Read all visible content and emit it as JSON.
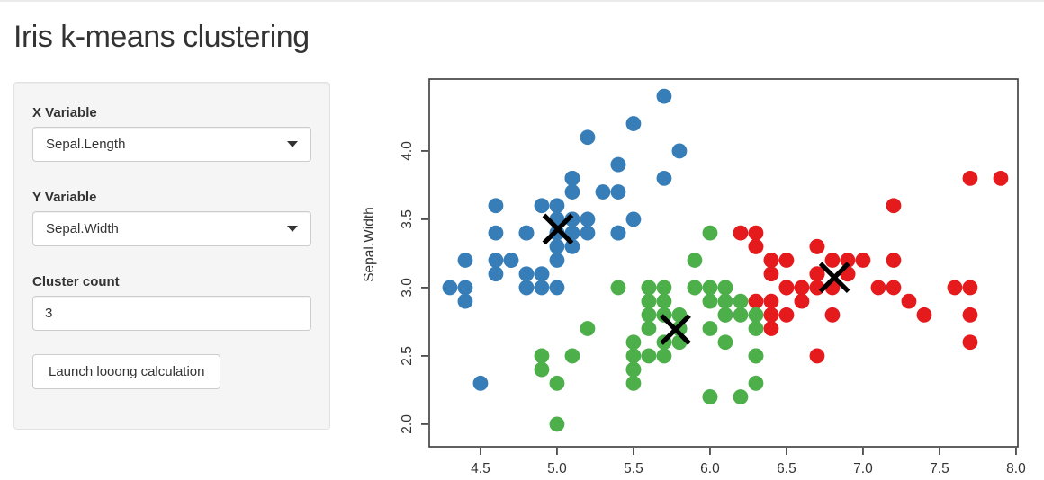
{
  "app": {
    "title": "Iris k-means clustering"
  },
  "sidebar": {
    "x_variable": {
      "label": "X Variable",
      "value": "Sepal.Length"
    },
    "y_variable": {
      "label": "Y Variable",
      "value": "Sepal.Width"
    },
    "cluster_count": {
      "label": "Cluster count",
      "value": "3"
    },
    "launch_button": "Launch looong calculation"
  },
  "chart_data": {
    "type": "scatter",
    "title": "",
    "xlabel": "",
    "ylabel": "Sepal.Width",
    "x_ticks": [
      4.5,
      5.0,
      5.5,
      6.0,
      6.5,
      7.0,
      7.5,
      8.0
    ],
    "y_ticks": [
      2.0,
      2.5,
      3.0,
      3.5,
      4.0
    ],
    "x_range": [
      4.165,
      8.012
    ],
    "y_range": [
      1.835,
      4.526
    ],
    "grid": false,
    "legend": "none",
    "cluster_colors": [
      "#377EB8",
      "#4DAF4A",
      "#E41A1C"
    ],
    "center_marker": {
      "shape": "x",
      "color": "#000000"
    },
    "centers": [
      [
        5.006,
        3.428
      ],
      [
        5.774,
        2.693
      ],
      [
        6.813,
        3.074
      ]
    ],
    "points": [
      [
        5.1,
        3.5
      ],
      [
        4.9,
        3.0
      ],
      [
        4.7,
        3.2
      ],
      [
        4.6,
        3.1
      ],
      [
        5.0,
        3.6
      ],
      [
        5.4,
        3.9
      ],
      [
        4.6,
        3.4
      ],
      [
        5.0,
        3.4
      ],
      [
        4.4,
        2.9
      ],
      [
        4.9,
        3.1
      ],
      [
        5.4,
        3.7
      ],
      [
        4.8,
        3.4
      ],
      [
        4.8,
        3.0
      ],
      [
        4.3,
        3.0
      ],
      [
        5.8,
        4.0
      ],
      [
        5.7,
        4.4
      ],
      [
        5.4,
        3.9
      ],
      [
        5.1,
        3.5
      ],
      [
        5.7,
        3.8
      ],
      [
        5.1,
        3.8
      ],
      [
        5.4,
        3.4
      ],
      [
        5.1,
        3.7
      ],
      [
        4.6,
        3.6
      ],
      [
        5.1,
        3.3
      ],
      [
        4.8,
        3.4
      ],
      [
        5.0,
        3.0
      ],
      [
        5.0,
        3.4
      ],
      [
        5.2,
        3.5
      ],
      [
        5.2,
        3.4
      ],
      [
        4.7,
        3.2
      ],
      [
        4.8,
        3.1
      ],
      [
        5.4,
        3.4
      ],
      [
        5.2,
        4.1
      ],
      [
        5.5,
        4.2
      ],
      [
        4.9,
        3.1
      ],
      [
        5.0,
        3.2
      ],
      [
        5.5,
        3.5
      ],
      [
        4.9,
        3.6
      ],
      [
        4.4,
        3.0
      ],
      [
        5.1,
        3.4
      ],
      [
        5.0,
        3.5
      ],
      [
        4.5,
        2.3
      ],
      [
        4.4,
        3.2
      ],
      [
        5.0,
        3.5
      ],
      [
        5.1,
        3.8
      ],
      [
        4.8,
        3.0
      ],
      [
        5.1,
        3.8
      ],
      [
        4.6,
        3.2
      ],
      [
        5.3,
        3.7
      ],
      [
        5.0,
        3.3
      ],
      [
        7.0,
        3.2
      ],
      [
        6.4,
        3.2
      ],
      [
        6.9,
        3.1
      ],
      [
        5.5,
        2.3
      ],
      [
        6.5,
        2.8
      ],
      [
        5.7,
        2.8
      ],
      [
        6.3,
        3.3
      ],
      [
        4.9,
        2.4
      ],
      [
        6.6,
        2.9
      ],
      [
        5.2,
        2.7
      ],
      [
        5.0,
        2.0
      ],
      [
        5.9,
        3.0
      ],
      [
        6.0,
        2.2
      ],
      [
        6.1,
        2.9
      ],
      [
        5.6,
        2.9
      ],
      [
        6.7,
        3.1
      ],
      [
        5.6,
        3.0
      ],
      [
        5.8,
        2.7
      ],
      [
        6.2,
        2.2
      ],
      [
        5.6,
        2.5
      ],
      [
        5.9,
        3.2
      ],
      [
        6.1,
        2.8
      ],
      [
        6.3,
        2.5
      ],
      [
        6.1,
        2.8
      ],
      [
        6.4,
        2.9
      ],
      [
        6.6,
        3.0
      ],
      [
        6.8,
        2.8
      ],
      [
        6.7,
        3.0
      ],
      [
        6.0,
        2.9
      ],
      [
        5.7,
        2.6
      ],
      [
        5.5,
        2.4
      ],
      [
        5.5,
        2.4
      ],
      [
        5.8,
        2.7
      ],
      [
        6.0,
        2.7
      ],
      [
        5.4,
        3.0
      ],
      [
        6.0,
        3.4
      ],
      [
        6.7,
        3.1
      ],
      [
        6.3,
        2.3
      ],
      [
        5.6,
        3.0
      ],
      [
        5.5,
        2.5
      ],
      [
        5.5,
        2.6
      ],
      [
        6.1,
        3.0
      ],
      [
        5.8,
        2.6
      ],
      [
        5.0,
        2.3
      ],
      [
        5.6,
        2.7
      ],
      [
        5.7,
        3.0
      ],
      [
        5.7,
        2.9
      ],
      [
        6.2,
        2.9
      ],
      [
        5.1,
        2.5
      ],
      [
        5.7,
        2.8
      ],
      [
        6.3,
        3.3
      ],
      [
        5.8,
        2.7
      ],
      [
        7.1,
        3.0
      ],
      [
        6.3,
        2.9
      ],
      [
        6.5,
        3.0
      ],
      [
        7.6,
        3.0
      ],
      [
        4.9,
        2.5
      ],
      [
        7.3,
        2.9
      ],
      [
        6.7,
        2.5
      ],
      [
        7.2,
        3.6
      ],
      [
        6.5,
        3.2
      ],
      [
        6.4,
        2.7
      ],
      [
        6.8,
        3.0
      ],
      [
        5.7,
        2.5
      ],
      [
        5.8,
        2.8
      ],
      [
        6.4,
        3.2
      ],
      [
        6.5,
        3.0
      ],
      [
        7.7,
        3.8
      ],
      [
        7.7,
        2.6
      ],
      [
        6.0,
        2.2
      ],
      [
        6.9,
        3.2
      ],
      [
        5.6,
        2.8
      ],
      [
        7.7,
        2.8
      ],
      [
        6.3,
        2.7
      ],
      [
        6.7,
        3.3
      ],
      [
        7.2,
        3.2
      ],
      [
        6.2,
        2.8
      ],
      [
        6.1,
        3.0
      ],
      [
        6.4,
        2.8
      ],
      [
        7.2,
        3.0
      ],
      [
        7.4,
        2.8
      ],
      [
        7.9,
        3.8
      ],
      [
        6.4,
        2.8
      ],
      [
        6.3,
        2.8
      ],
      [
        6.1,
        2.6
      ],
      [
        7.7,
        3.0
      ],
      [
        6.3,
        3.4
      ],
      [
        6.4,
        3.1
      ],
      [
        6.0,
        3.0
      ],
      [
        6.9,
        3.1
      ],
      [
        6.7,
        3.1
      ],
      [
        6.9,
        3.1
      ],
      [
        5.8,
        2.7
      ],
      [
        6.8,
        3.2
      ],
      [
        6.7,
        3.3
      ],
      [
        6.7,
        3.0
      ],
      [
        6.3,
        2.5
      ],
      [
        6.5,
        3.0
      ],
      [
        6.2,
        3.4
      ],
      [
        5.9,
        3.0
      ]
    ]
  }
}
